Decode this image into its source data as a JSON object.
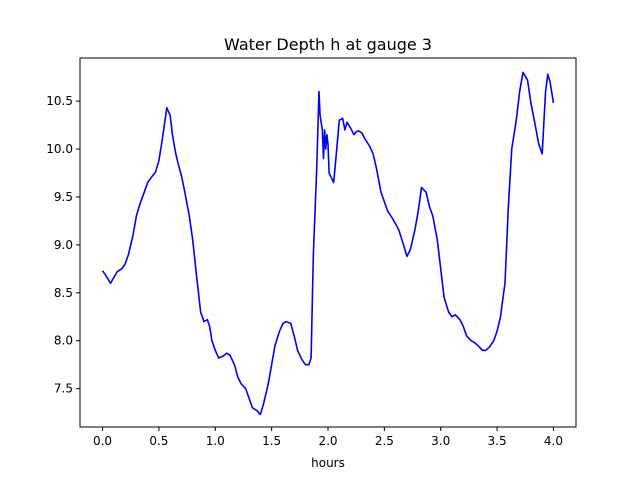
{
  "chart_data": {
    "type": "line",
    "title": "Water Depth h at gauge 3",
    "xlabel": "hours",
    "ylabel": "",
    "xlim": [
      -0.2,
      4.2
    ],
    "ylim": [
      7.1,
      10.95
    ],
    "xticks": [
      0.0,
      0.5,
      1.0,
      1.5,
      2.0,
      2.5,
      3.0,
      3.5,
      4.0
    ],
    "yticks": [
      7.5,
      8.0,
      8.5,
      9.0,
      9.5,
      10.0,
      10.5
    ],
    "xtick_labels": [
      "0.0",
      "0.5",
      "1.0",
      "1.5",
      "2.0",
      "2.5",
      "3.0",
      "3.5",
      "4.0"
    ],
    "ytick_labels": [
      "7.5",
      "8.0",
      "8.5",
      "9.0",
      "9.5",
      "10.0",
      "10.5"
    ],
    "grid": false,
    "legend": "none",
    "series": [
      {
        "color": "#0000ff",
        "x": [
          0.0,
          0.03,
          0.07,
          0.1,
          0.13,
          0.17,
          0.2,
          0.23,
          0.27,
          0.3,
          0.33,
          0.37,
          0.4,
          0.43,
          0.47,
          0.5,
          0.53,
          0.57,
          0.6,
          0.62,
          0.63,
          0.65,
          0.67,
          0.7,
          0.73,
          0.77,
          0.8,
          0.83,
          0.87,
          0.9,
          0.93,
          0.95,
          0.97,
          1.0,
          1.03,
          1.07,
          1.1,
          1.13,
          1.17,
          1.2,
          1.23,
          1.27,
          1.3,
          1.33,
          1.37,
          1.4,
          1.43,
          1.47,
          1.5,
          1.53,
          1.57,
          1.6,
          1.63,
          1.67,
          1.7,
          1.73,
          1.77,
          1.8,
          1.83,
          1.85,
          1.87,
          1.9,
          1.92,
          1.93,
          1.95,
          1.96,
          1.97,
          1.98,
          1.99,
          2.0,
          2.01,
          2.03,
          2.05,
          2.07,
          2.1,
          2.13,
          2.15,
          2.17,
          2.2,
          2.23,
          2.25,
          2.27,
          2.3,
          2.33,
          2.37,
          2.4,
          2.43,
          2.47,
          2.5,
          2.53,
          2.57,
          2.6,
          2.63,
          2.67,
          2.7,
          2.73,
          2.77,
          2.8,
          2.83,
          2.87,
          2.9,
          2.93,
          2.97,
          3.0,
          3.03,
          3.07,
          3.1,
          3.13,
          3.17,
          3.2,
          3.23,
          3.27,
          3.3,
          3.33,
          3.37,
          3.4,
          3.43,
          3.47,
          3.5,
          3.53,
          3.57,
          3.6,
          3.63,
          3.67,
          3.7,
          3.73,
          3.77,
          3.8,
          3.83,
          3.87,
          3.9,
          3.93,
          3.95,
          3.97,
          4.0
        ],
        "values": [
          8.73,
          8.68,
          8.6,
          8.66,
          8.72,
          8.75,
          8.8,
          8.9,
          9.1,
          9.3,
          9.42,
          9.55,
          9.65,
          9.7,
          9.76,
          9.88,
          10.1,
          10.43,
          10.35,
          10.15,
          10.08,
          9.95,
          9.85,
          9.72,
          9.55,
          9.3,
          9.05,
          8.72,
          8.3,
          8.2,
          8.22,
          8.15,
          8.0,
          7.9,
          7.82,
          7.84,
          7.87,
          7.85,
          7.75,
          7.62,
          7.55,
          7.5,
          7.4,
          7.3,
          7.27,
          7.23,
          7.35,
          7.55,
          7.75,
          7.95,
          8.1,
          8.18,
          8.2,
          8.18,
          8.05,
          7.9,
          7.8,
          7.75,
          7.75,
          7.82,
          8.9,
          9.8,
          10.6,
          10.35,
          10.2,
          9.9,
          10.2,
          10.0,
          10.15,
          10.05,
          9.75,
          9.7,
          9.65,
          9.9,
          10.3,
          10.32,
          10.2,
          10.28,
          10.22,
          10.15,
          10.18,
          10.19,
          10.17,
          10.1,
          10.03,
          9.95,
          9.8,
          9.55,
          9.45,
          9.35,
          9.28,
          9.22,
          9.15,
          9.0,
          8.88,
          8.95,
          9.15,
          9.35,
          9.6,
          9.55,
          9.4,
          9.3,
          9.05,
          8.75,
          8.45,
          8.3,
          8.25,
          8.27,
          8.22,
          8.15,
          8.05,
          8.0,
          7.98,
          7.95,
          7.9,
          7.9,
          7.93,
          8.0,
          8.1,
          8.25,
          8.6,
          9.4,
          10.0,
          10.3,
          10.6,
          10.8,
          10.72,
          10.48,
          10.3,
          10.05,
          9.95,
          10.6,
          10.78,
          10.7,
          10.48
        ],
        "values_note_x": "",
        "name": ""
      }
    ]
  }
}
